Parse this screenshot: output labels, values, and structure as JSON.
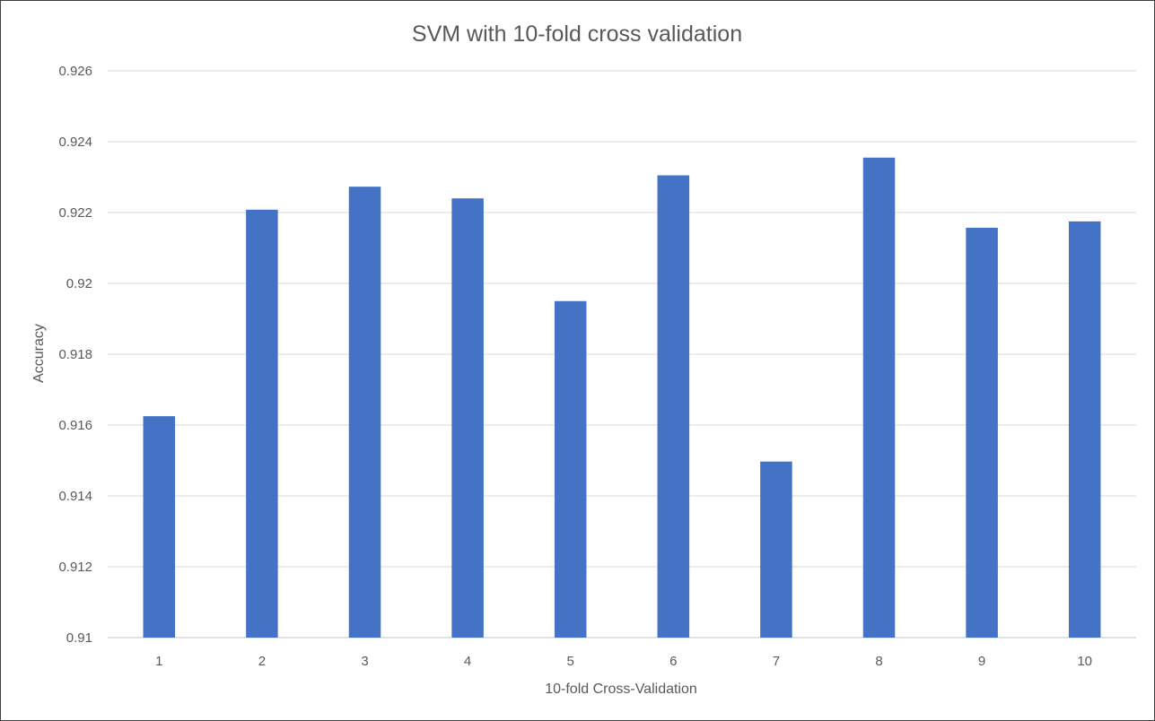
{
  "chart_data": {
    "type": "bar",
    "title": "SVM with 10-fold cross validation",
    "xlabel": "10-fold Cross-Validation",
    "ylabel": "Accuracy",
    "categories": [
      "1",
      "2",
      "3",
      "4",
      "5",
      "6",
      "7",
      "8",
      "9",
      "10"
    ],
    "values": [
      0.91625,
      0.92208,
      0.92273,
      0.9224,
      0.9195,
      0.92305,
      0.91497,
      0.92355,
      0.92157,
      0.92175
    ],
    "ylim": [
      0.91,
      0.926
    ],
    "yticks": [
      "0.91",
      "0.912",
      "0.914",
      "0.916",
      "0.918",
      "0.92",
      "0.922",
      "0.924",
      "0.926"
    ],
    "grid": true,
    "legend": "none",
    "colors": {
      "bar": "#4472c4",
      "grid": "#d9d9d9",
      "axis_line": "#d9d9d9",
      "text": "#595959",
      "border": "#3f3f3f"
    }
  }
}
